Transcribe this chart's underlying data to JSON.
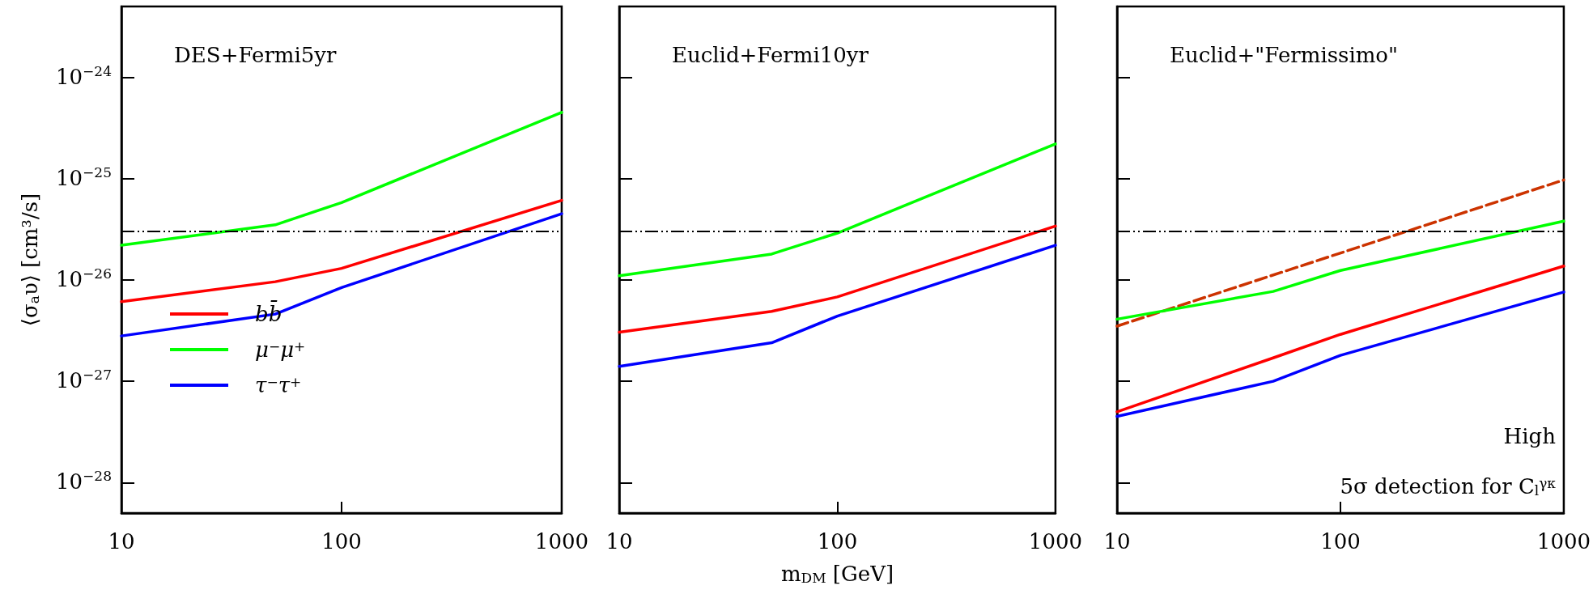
{
  "chart_data": [
    {
      "type": "line",
      "title": "DES+Fermi5yr",
      "ylabel": "⟨σ$_{a}$υ⟩ [cm³/s]",
      "x": [
        10,
        50,
        100,
        1000
      ],
      "xlim": [
        10,
        1000
      ],
      "xticks": [
        10,
        100,
        1000
      ],
      "ylim": [
        5e-29,
        5e-24
      ],
      "yticks": [
        {
          "value": 1e-28,
          "label": "10$^{−28}$"
        },
        {
          "value": 1e-27,
          "label": "10$^{−27}$"
        },
        {
          "value": 1e-26,
          "label": "10$^{−26}$"
        },
        {
          "value": 1e-25,
          "label": "10$^{−25}$"
        },
        {
          "value": 1e-24,
          "label": "10$^{−24}$"
        }
      ],
      "log": "xy",
      "marker": "none",
      "legend": "bottom left",
      "ref_lines": [
        {
          "axis": "y",
          "value": 3e-26,
          "color": "#000000",
          "line_style": "dashed"
        }
      ],
      "series": [
        {
          "name": "bb̄",
          "color": "#ff0000",
          "values": [
            6.1e-27,
            9.6e-27,
            1.3e-26,
            6.1e-26
          ]
        },
        {
          "name": "μ$^{−}$μ$^{+}$",
          "color": "#00ff00",
          "values": [
            2.2e-26,
            3.5e-26,
            5.8e-26,
            4.5e-25
          ]
        },
        {
          "name": "τ$^{−}$τ$^{+}$",
          "color": "#0000ff",
          "values": [
            2.8e-27,
            4.6e-27,
            8.4e-27,
            4.5e-26
          ]
        }
      ]
    },
    {
      "type": "line",
      "title": "Euclid+Fermi10yr",
      "xlabel": "m$_{DM}$ [GeV]",
      "x": [
        10,
        50,
        100,
        1000
      ],
      "xlim": [
        10,
        1000
      ],
      "xticks": [
        10,
        100,
        1000
      ],
      "ylim": [
        5e-29,
        5e-24
      ],
      "yticks": [
        {
          "value": 1e-28,
          "label": null
        },
        {
          "value": 1e-27,
          "label": null
        },
        {
          "value": 1e-26,
          "label": null
        },
        {
          "value": 1e-25,
          "label": null
        },
        {
          "value": 1e-24,
          "label": null
        }
      ],
      "log": "xy",
      "marker": "none",
      "tick_labels": "x",
      "ref_lines": [
        {
          "axis": "y",
          "value": 3e-26,
          "color": "#000000",
          "line_style": "dashed"
        }
      ],
      "series": [
        {
          "color": "#ff0000",
          "values": [
            3.05e-27,
            4.9e-27,
            6.8e-27,
            3.4e-26
          ]
        },
        {
          "color": "#00ff00",
          "values": [
            1.1e-26,
            1.8e-26,
            2.9e-26,
            2.2e-25
          ]
        },
        {
          "color": "#0000ff",
          "values": [
            1.4e-27,
            2.4e-27,
            4.4e-27,
            2.2e-26
          ]
        }
      ]
    },
    {
      "type": "line",
      "title": "Euclid+\"Fermissimo\"",
      "x": [
        10,
        50,
        100,
        1000
      ],
      "xlim": [
        10,
        1000
      ],
      "xticks": [
        10,
        100,
        1000
      ],
      "ylim": [
        5e-29,
        5e-24
      ],
      "yticks": [
        {
          "value": 1e-28,
          "label": null
        },
        {
          "value": 1e-27,
          "label": null
        },
        {
          "value": 1e-26,
          "label": null
        },
        {
          "value": 1e-25,
          "label": null
        },
        {
          "value": 1e-24,
          "label": null
        }
      ],
      "log": "xy",
      "marker": "none",
      "tick_labels": "x",
      "ref_lines": [
        {
          "axis": "y",
          "value": 3e-26,
          "color": "#000000",
          "line_style": "dashed"
        }
      ],
      "annotations": [
        "High",
        "5σ detection for C$_{l}$$^{γκ}$"
      ],
      "series": [
        {
          "color": "#cc3300",
          "line_style": "dashed",
          "x": [
            10,
            1000
          ],
          "values": [
            3.5e-27,
            9.7e-26
          ]
        },
        {
          "color": "#00ff00",
          "values": [
            4.1e-27,
            7.7e-27,
            1.24e-26,
            3.8e-26
          ]
        },
        {
          "color": "#ff0000",
          "values": [
            5e-28,
            1.7e-27,
            2.9e-27,
            1.37e-26
          ]
        },
        {
          "color": "#0000ff",
          "values": [
            4.5e-28,
            1e-27,
            1.8e-27,
            7.6e-27
          ]
        }
      ]
    }
  ]
}
